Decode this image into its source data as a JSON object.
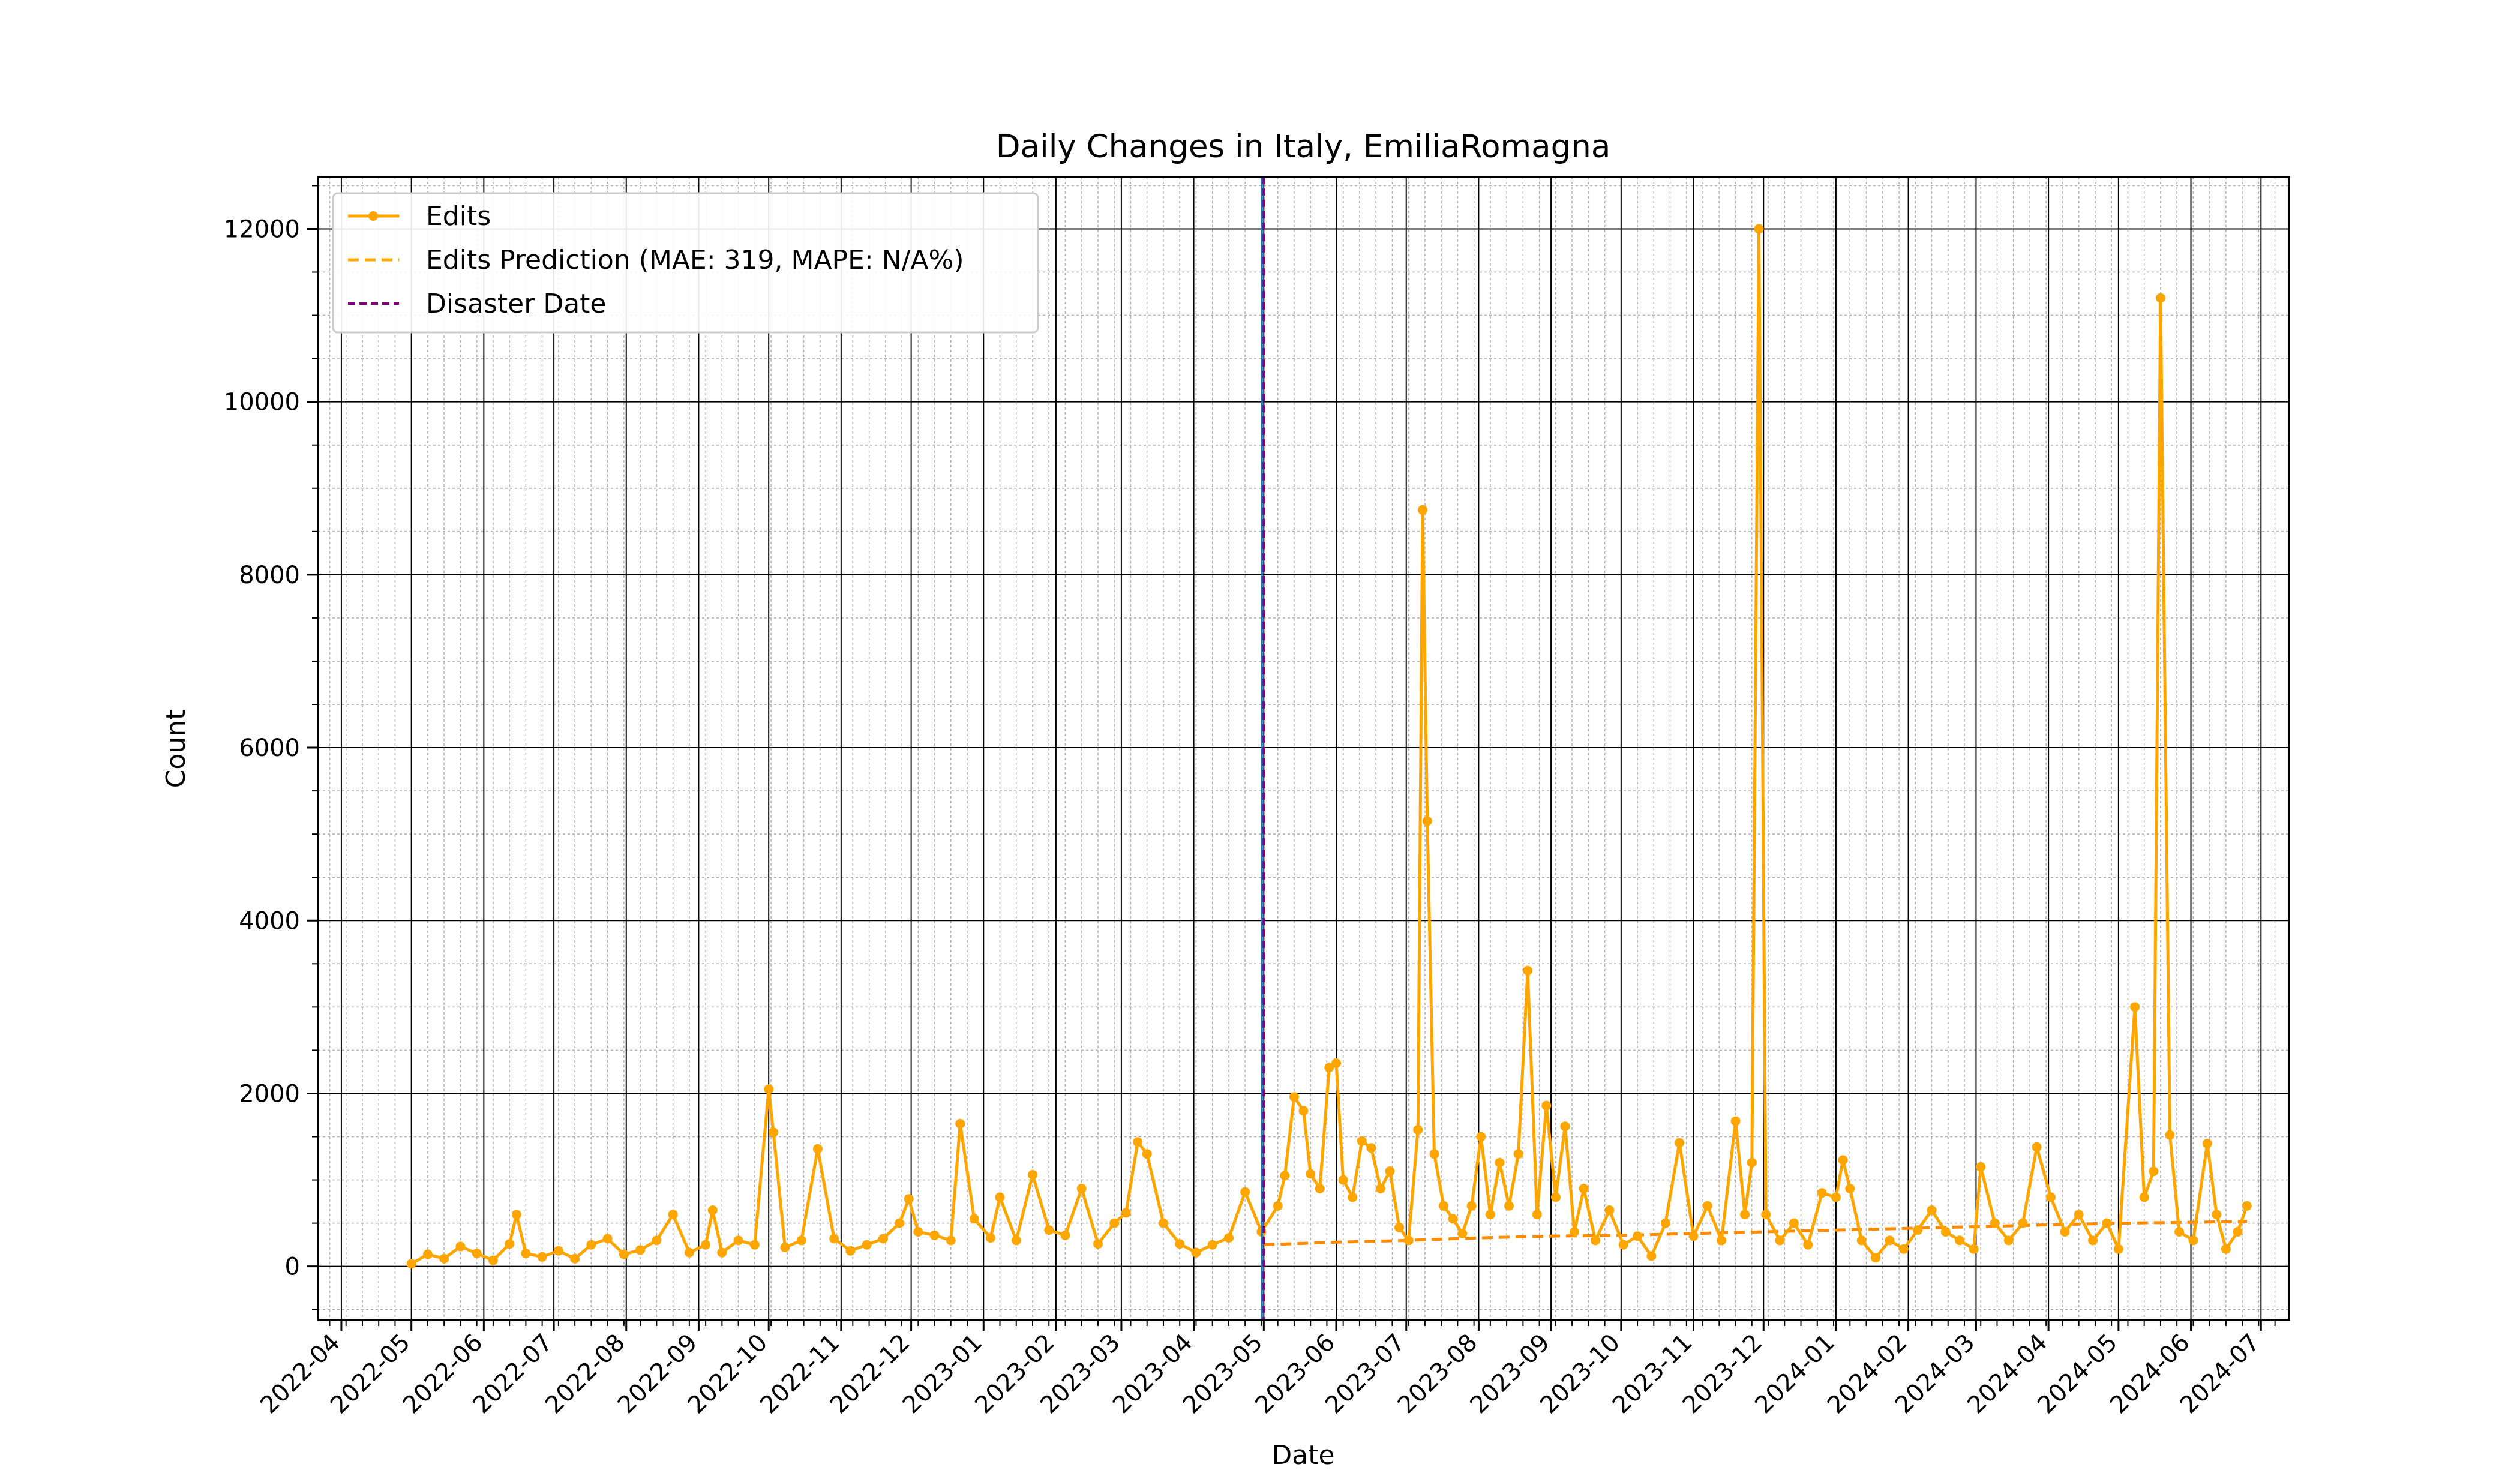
{
  "chart_data": {
    "type": "line",
    "title": "Daily Changes in Italy, EmiliaRomagna",
    "xlabel": "Date",
    "ylabel": "Count",
    "xlim": [
      "2022-03-22",
      "2024-07-13"
    ],
    "ylim": [
      -620,
      12600
    ],
    "x_ticks": [
      "2022-04",
      "2022-05",
      "2022-06",
      "2022-07",
      "2022-08",
      "2022-09",
      "2022-10",
      "2022-11",
      "2022-12",
      "2023-01",
      "2023-02",
      "2023-03",
      "2023-04",
      "2023-05",
      "2023-06",
      "2023-07",
      "2023-08",
      "2023-09",
      "2023-10",
      "2023-11",
      "2023-12",
      "2024-01",
      "2024-02",
      "2024-03",
      "2024-04",
      "2024-05",
      "2024-06",
      "2024-07"
    ],
    "y_ticks": [
      0,
      2000,
      4000,
      6000,
      8000,
      10000,
      12000
    ],
    "y_minor_step": 500,
    "grid": true,
    "legend_position": "upper-left",
    "disaster_date": "2023-05-01",
    "series": [
      {
        "name": "Edits",
        "color": "#ffa500",
        "style": "solid-with-markers",
        "points": [
          [
            "2022-05-01",
            30
          ],
          [
            "2022-05-08",
            140
          ],
          [
            "2022-05-15",
            90
          ],
          [
            "2022-05-22",
            230
          ],
          [
            "2022-05-29",
            150
          ],
          [
            "2022-06-05",
            70
          ],
          [
            "2022-06-12",
            260
          ],
          [
            "2022-06-15",
            600
          ],
          [
            "2022-06-19",
            150
          ],
          [
            "2022-06-26",
            110
          ],
          [
            "2022-07-03",
            180
          ],
          [
            "2022-07-10",
            90
          ],
          [
            "2022-07-17",
            250
          ],
          [
            "2022-07-24",
            320
          ],
          [
            "2022-07-31",
            140
          ],
          [
            "2022-08-07",
            190
          ],
          [
            "2022-08-14",
            300
          ],
          [
            "2022-08-21",
            600
          ],
          [
            "2022-08-28",
            160
          ],
          [
            "2022-09-04",
            250
          ],
          [
            "2022-09-07",
            650
          ],
          [
            "2022-09-11",
            160
          ],
          [
            "2022-09-18",
            300
          ],
          [
            "2022-09-25",
            250
          ],
          [
            "2022-10-01",
            2050
          ],
          [
            "2022-10-03",
            1550
          ],
          [
            "2022-10-08",
            220
          ],
          [
            "2022-10-15",
            300
          ],
          [
            "2022-10-22",
            1360
          ],
          [
            "2022-10-29",
            320
          ],
          [
            "2022-11-05",
            180
          ],
          [
            "2022-11-12",
            250
          ],
          [
            "2022-11-19",
            320
          ],
          [
            "2022-11-26",
            500
          ],
          [
            "2022-11-30",
            780
          ],
          [
            "2022-12-04",
            400
          ],
          [
            "2022-12-11",
            360
          ],
          [
            "2022-12-18",
            300
          ],
          [
            "2022-12-22",
            1650
          ],
          [
            "2022-12-28",
            550
          ],
          [
            "2023-01-04",
            330
          ],
          [
            "2023-01-08",
            800
          ],
          [
            "2023-01-15",
            300
          ],
          [
            "2023-01-22",
            1060
          ],
          [
            "2023-01-29",
            420
          ],
          [
            "2023-02-05",
            360
          ],
          [
            "2023-02-12",
            900
          ],
          [
            "2023-02-19",
            260
          ],
          [
            "2023-02-26",
            500
          ],
          [
            "2023-03-03",
            620
          ],
          [
            "2023-03-08",
            1440
          ],
          [
            "2023-03-12",
            1300
          ],
          [
            "2023-03-19",
            500
          ],
          [
            "2023-03-26",
            260
          ],
          [
            "2023-04-02",
            160
          ],
          [
            "2023-04-09",
            250
          ],
          [
            "2023-04-16",
            330
          ],
          [
            "2023-04-23",
            860
          ],
          [
            "2023-04-30",
            400
          ],
          [
            "2023-05-07",
            700
          ],
          [
            "2023-05-10",
            1050
          ],
          [
            "2023-05-14",
            1960
          ],
          [
            "2023-05-18",
            1800
          ],
          [
            "2023-05-21",
            1070
          ],
          [
            "2023-05-25",
            900
          ],
          [
            "2023-05-29",
            2300
          ],
          [
            "2023-06-01",
            2350
          ],
          [
            "2023-06-04",
            1000
          ],
          [
            "2023-06-08",
            800
          ],
          [
            "2023-06-12",
            1450
          ],
          [
            "2023-06-16",
            1370
          ],
          [
            "2023-06-20",
            900
          ],
          [
            "2023-06-24",
            1100
          ],
          [
            "2023-06-28",
            450
          ],
          [
            "2023-07-02",
            300
          ],
          [
            "2023-07-06",
            1580
          ],
          [
            "2023-07-08",
            8750
          ],
          [
            "2023-07-10",
            5150
          ],
          [
            "2023-07-13",
            1300
          ],
          [
            "2023-07-17",
            700
          ],
          [
            "2023-07-21",
            550
          ],
          [
            "2023-07-25",
            380
          ],
          [
            "2023-07-29",
            700
          ],
          [
            "2023-08-02",
            1500
          ],
          [
            "2023-08-06",
            600
          ],
          [
            "2023-08-10",
            1200
          ],
          [
            "2023-08-14",
            700
          ],
          [
            "2023-08-18",
            1300
          ],
          [
            "2023-08-22",
            3420
          ],
          [
            "2023-08-26",
            600
          ],
          [
            "2023-08-30",
            1860
          ],
          [
            "2023-09-03",
            800
          ],
          [
            "2023-09-07",
            1620
          ],
          [
            "2023-09-11",
            400
          ],
          [
            "2023-09-15",
            900
          ],
          [
            "2023-09-20",
            300
          ],
          [
            "2023-09-26",
            650
          ],
          [
            "2023-10-02",
            250
          ],
          [
            "2023-10-08",
            350
          ],
          [
            "2023-10-14",
            120
          ],
          [
            "2023-10-20",
            500
          ],
          [
            "2023-10-26",
            1430
          ],
          [
            "2023-11-01",
            350
          ],
          [
            "2023-11-07",
            700
          ],
          [
            "2023-11-13",
            300
          ],
          [
            "2023-11-19",
            1680
          ],
          [
            "2023-11-23",
            600
          ],
          [
            "2023-11-26",
            1200
          ],
          [
            "2023-11-29",
            12000
          ],
          [
            "2023-12-02",
            600
          ],
          [
            "2023-12-08",
            300
          ],
          [
            "2023-12-14",
            500
          ],
          [
            "2023-12-20",
            250
          ],
          [
            "2023-12-26",
            850
          ],
          [
            "2024-01-01",
            800
          ],
          [
            "2024-01-04",
            1230
          ],
          [
            "2024-01-07",
            900
          ],
          [
            "2024-01-12",
            300
          ],
          [
            "2024-01-18",
            100
          ],
          [
            "2024-01-24",
            300
          ],
          [
            "2024-01-30",
            200
          ],
          [
            "2024-02-05",
            420
          ],
          [
            "2024-02-11",
            650
          ],
          [
            "2024-02-17",
            400
          ],
          [
            "2024-02-23",
            300
          ],
          [
            "2024-02-29",
            200
          ],
          [
            "2024-03-03",
            1150
          ],
          [
            "2024-03-09",
            500
          ],
          [
            "2024-03-15",
            300
          ],
          [
            "2024-03-21",
            500
          ],
          [
            "2024-03-27",
            1380
          ],
          [
            "2024-04-02",
            800
          ],
          [
            "2024-04-08",
            400
          ],
          [
            "2024-04-14",
            600
          ],
          [
            "2024-04-20",
            300
          ],
          [
            "2024-04-26",
            500
          ],
          [
            "2024-05-01",
            200
          ],
          [
            "2024-05-08",
            3000
          ],
          [
            "2024-05-12",
            800
          ],
          [
            "2024-05-16",
            1100
          ],
          [
            "2024-05-19",
            11200
          ],
          [
            "2024-05-23",
            1520
          ],
          [
            "2024-05-27",
            400
          ],
          [
            "2024-06-02",
            300
          ],
          [
            "2024-06-08",
            1420
          ],
          [
            "2024-06-12",
            600
          ],
          [
            "2024-06-16",
            200
          ],
          [
            "2024-06-21",
            400
          ],
          [
            "2024-06-25",
            700
          ]
        ]
      },
      {
        "name": "Edits Prediction (MAE: 319, MAPE: N/A%)",
        "color": "#ffa500",
        "style": "dashed",
        "points": [
          [
            "2023-05-01",
            250
          ],
          [
            "2023-06-01",
            280
          ],
          [
            "2023-07-01",
            300
          ],
          [
            "2023-08-01",
            330
          ],
          [
            "2023-09-01",
            350
          ],
          [
            "2023-10-01",
            360
          ],
          [
            "2023-11-01",
            380
          ],
          [
            "2023-12-01",
            400
          ],
          [
            "2024-01-01",
            420
          ],
          [
            "2024-02-01",
            440
          ],
          [
            "2024-03-01",
            460
          ],
          [
            "2024-04-01",
            480
          ],
          [
            "2024-05-01",
            500
          ],
          [
            "2024-06-01",
            510
          ],
          [
            "2024-06-25",
            520
          ]
        ]
      }
    ]
  },
  "legend": {
    "edits": "Edits",
    "prediction": "Edits Prediction (MAE: 319, MAPE: N/A%)",
    "disaster": "Disaster Date"
  },
  "colors": {
    "edits": "#ffa500",
    "prediction": "#ff8c00",
    "disaster": "#800080",
    "grid_major": "#000000",
    "grid_minor": "#b0b0b0"
  }
}
